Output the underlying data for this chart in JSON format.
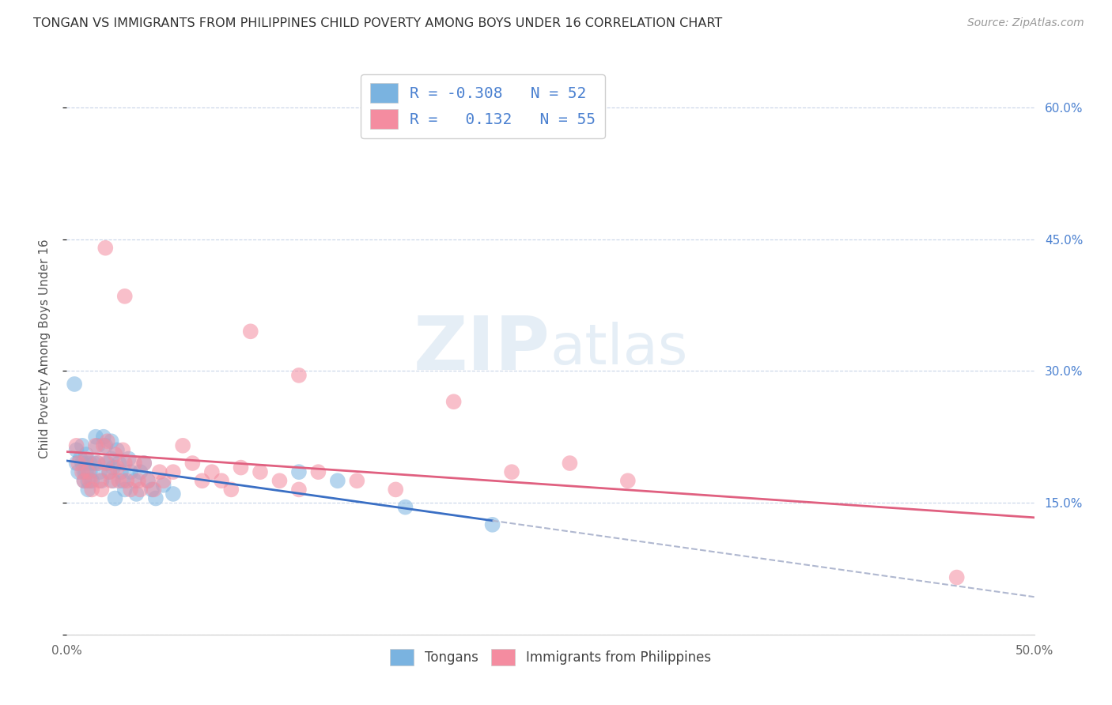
{
  "title": "TONGAN VS IMMIGRANTS FROM PHILIPPINES CHILD POVERTY AMONG BOYS UNDER 16 CORRELATION CHART",
  "source": "Source: ZipAtlas.com",
  "ylabel": "Child Poverty Among Boys Under 16",
  "xlim": [
    0.0,
    0.5
  ],
  "ylim": [
    0.0,
    0.65
  ],
  "tongans_color": "#7ab3e0",
  "philippines_color": "#f48ca0",
  "tongans_line_color": "#3a6fc4",
  "philippines_line_color": "#e06080",
  "dashed_line_color": "#b0b8d0",
  "watermark": "ZIPatlas",
  "background_color": "#ffffff",
  "grid_color": "#c8d4e8",
  "title_color": "#333333",
  "right_axis_color": "#4a80d0",
  "legend_text_color": "#4a80d0",
  "source_color": "#999999",
  "ylabel_color": "#555555",
  "xtick_color": "#666666",
  "tongans_scatter": [
    [
      0.005,
      0.21
    ],
    [
      0.005,
      0.195
    ],
    [
      0.006,
      0.185
    ],
    [
      0.007,
      0.2
    ],
    [
      0.008,
      0.215
    ],
    [
      0.008,
      0.195
    ],
    [
      0.009,
      0.185
    ],
    [
      0.009,
      0.175
    ],
    [
      0.01,
      0.205
    ],
    [
      0.01,
      0.195
    ],
    [
      0.01,
      0.185
    ],
    [
      0.011,
      0.175
    ],
    [
      0.011,
      0.165
    ],
    [
      0.012,
      0.195
    ],
    [
      0.012,
      0.185
    ],
    [
      0.013,
      0.175
    ],
    [
      0.014,
      0.195
    ],
    [
      0.015,
      0.225
    ],
    [
      0.016,
      0.215
    ],
    [
      0.016,
      0.195
    ],
    [
      0.017,
      0.185
    ],
    [
      0.018,
      0.175
    ],
    [
      0.019,
      0.225
    ],
    [
      0.02,
      0.215
    ],
    [
      0.021,
      0.195
    ],
    [
      0.022,
      0.185
    ],
    [
      0.023,
      0.22
    ],
    [
      0.023,
      0.2
    ],
    [
      0.024,
      0.19
    ],
    [
      0.024,
      0.175
    ],
    [
      0.025,
      0.155
    ],
    [
      0.026,
      0.21
    ],
    [
      0.027,
      0.195
    ],
    [
      0.028,
      0.185
    ],
    [
      0.029,
      0.175
    ],
    [
      0.03,
      0.165
    ],
    [
      0.032,
      0.2
    ],
    [
      0.033,
      0.185
    ],
    [
      0.035,
      0.175
    ],
    [
      0.036,
      0.16
    ],
    [
      0.038,
      0.185
    ],
    [
      0.04,
      0.195
    ],
    [
      0.042,
      0.175
    ],
    [
      0.044,
      0.165
    ],
    [
      0.046,
      0.155
    ],
    [
      0.05,
      0.17
    ],
    [
      0.055,
      0.16
    ],
    [
      0.004,
      0.285
    ],
    [
      0.12,
      0.185
    ],
    [
      0.14,
      0.175
    ],
    [
      0.175,
      0.145
    ],
    [
      0.22,
      0.125
    ]
  ],
  "philippines_scatter": [
    [
      0.005,
      0.215
    ],
    [
      0.006,
      0.195
    ],
    [
      0.008,
      0.185
    ],
    [
      0.009,
      0.175
    ],
    [
      0.01,
      0.2
    ],
    [
      0.011,
      0.185
    ],
    [
      0.012,
      0.175
    ],
    [
      0.013,
      0.165
    ],
    [
      0.015,
      0.215
    ],
    [
      0.016,
      0.195
    ],
    [
      0.017,
      0.175
    ],
    [
      0.018,
      0.165
    ],
    [
      0.019,
      0.215
    ],
    [
      0.02,
      0.195
    ],
    [
      0.021,
      0.22
    ],
    [
      0.022,
      0.185
    ],
    [
      0.023,
      0.175
    ],
    [
      0.025,
      0.205
    ],
    [
      0.026,
      0.19
    ],
    [
      0.027,
      0.175
    ],
    [
      0.029,
      0.21
    ],
    [
      0.03,
      0.195
    ],
    [
      0.031,
      0.175
    ],
    [
      0.033,
      0.165
    ],
    [
      0.035,
      0.195
    ],
    [
      0.037,
      0.175
    ],
    [
      0.038,
      0.165
    ],
    [
      0.04,
      0.195
    ],
    [
      0.042,
      0.175
    ],
    [
      0.045,
      0.165
    ],
    [
      0.048,
      0.185
    ],
    [
      0.05,
      0.175
    ],
    [
      0.055,
      0.185
    ],
    [
      0.06,
      0.215
    ],
    [
      0.065,
      0.195
    ],
    [
      0.07,
      0.175
    ],
    [
      0.075,
      0.185
    ],
    [
      0.08,
      0.175
    ],
    [
      0.085,
      0.165
    ],
    [
      0.09,
      0.19
    ],
    [
      0.1,
      0.185
    ],
    [
      0.11,
      0.175
    ],
    [
      0.12,
      0.165
    ],
    [
      0.13,
      0.185
    ],
    [
      0.15,
      0.175
    ],
    [
      0.17,
      0.165
    ],
    [
      0.2,
      0.265
    ],
    [
      0.23,
      0.185
    ],
    [
      0.26,
      0.195
    ],
    [
      0.29,
      0.175
    ],
    [
      0.02,
      0.44
    ],
    [
      0.03,
      0.385
    ],
    [
      0.095,
      0.345
    ],
    [
      0.12,
      0.295
    ],
    [
      0.46,
      0.065
    ]
  ]
}
